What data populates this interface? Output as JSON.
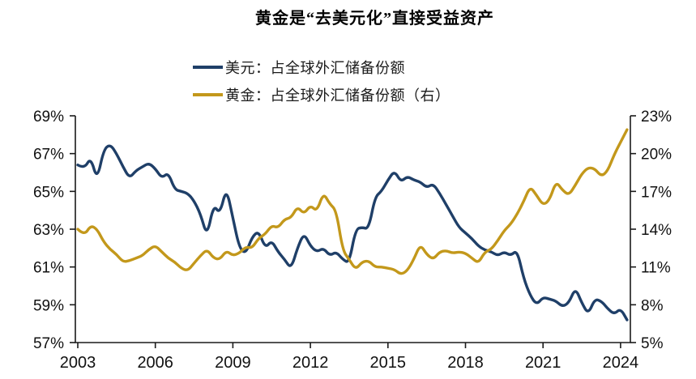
{
  "title": "黄金是“去美元化”直接受益资产",
  "legend": [
    {
      "label": "美元：占全球外汇储备份额",
      "color": "#1F3F68"
    },
    {
      "label": "黄金：占全球外汇储备份额（右）",
      "color": "#C3981B"
    }
  ],
  "chart_data": {
    "type": "line",
    "title": "黄金是“去美元化”直接受益资产",
    "x": {
      "start_year": 2003,
      "step_years": 0.25,
      "interval": "quarterly",
      "tick_labels": [
        "2003",
        "2006",
        "2009",
        "2012",
        "2015",
        "2018",
        "2021",
        "2024"
      ]
    },
    "left_axis": {
      "min": 57,
      "max": 69,
      "unit": "%",
      "tick_labels": [
        "69%",
        "67%",
        "65%",
        "63%",
        "61%",
        "59%",
        "57%"
      ]
    },
    "right_axis": {
      "min": 5,
      "max": 23,
      "unit": "%",
      "tick_labels": [
        "23%",
        "20%",
        "17%",
        "14%",
        "11%",
        "8%",
        "5%"
      ]
    },
    "grid": false,
    "legend_position": "top",
    "series": [
      {
        "name": "美元：占全球外汇储备份额",
        "axis": "left",
        "color": "#1F3F68",
        "unit": "%",
        "values": [
          66.4,
          66.2,
          66.8,
          65.6,
          67.2,
          67.5,
          67.0,
          66.3,
          65.7,
          66.1,
          66.3,
          66.5,
          66.2,
          65.7,
          66.0,
          65.1,
          65.0,
          64.9,
          64.5,
          63.8,
          62.6,
          64.3,
          63.8,
          65.2,
          63.6,
          62.0,
          61.7,
          62.6,
          62.9,
          62.0,
          62.4,
          61.8,
          61.4,
          60.9,
          62.0,
          62.8,
          62.1,
          61.8,
          62.0,
          61.6,
          61.8,
          61.4,
          61.2,
          63.0,
          63.1,
          63.0,
          64.7,
          65.0,
          65.6,
          66.1,
          65.5,
          65.8,
          65.6,
          65.5,
          65.2,
          65.4,
          64.9,
          64.3,
          63.7,
          63.1,
          62.8,
          62.5,
          62.1,
          61.9,
          61.8,
          61.6,
          61.8,
          61.6,
          61.9,
          60.4,
          59.5,
          59.0,
          59.4,
          59.3,
          59.2,
          58.9,
          59.1,
          59.9,
          59.1,
          58.5,
          59.3,
          59.2,
          58.8,
          58.5,
          58.8,
          58.2
        ]
      },
      {
        "name": "黄金：占全球外汇储备份额（右）",
        "axis": "right",
        "color": "#C3981B",
        "unit": "%",
        "values": [
          14.0,
          13.5,
          14.3,
          14.0,
          13.0,
          12.4,
          12.0,
          11.4,
          11.5,
          11.7,
          11.9,
          12.4,
          12.7,
          12.2,
          11.7,
          11.4,
          10.9,
          10.7,
          11.3,
          11.9,
          12.4,
          11.7,
          11.6,
          12.3,
          11.9,
          12.1,
          12.6,
          12.5,
          13.3,
          13.6,
          14.3,
          14.1,
          14.8,
          14.9,
          15.8,
          15.2,
          15.9,
          15.4,
          16.9,
          16.0,
          15.5,
          12.3,
          11.6,
          10.8,
          11.4,
          11.5,
          11.0,
          11.0,
          10.9,
          10.8,
          10.4,
          10.7,
          11.6,
          12.8,
          12.0,
          11.6,
          12.2,
          12.3,
          12.1,
          12.2,
          12.1,
          11.7,
          11.3,
          12.2,
          12.4,
          13.1,
          13.9,
          14.4,
          15.2,
          16.2,
          17.4,
          16.7,
          15.9,
          16.3,
          17.8,
          17.1,
          16.7,
          17.5,
          18.4,
          18.9,
          18.8,
          18.2,
          18.6,
          19.9,
          20.9,
          21.9
        ]
      }
    ]
  }
}
